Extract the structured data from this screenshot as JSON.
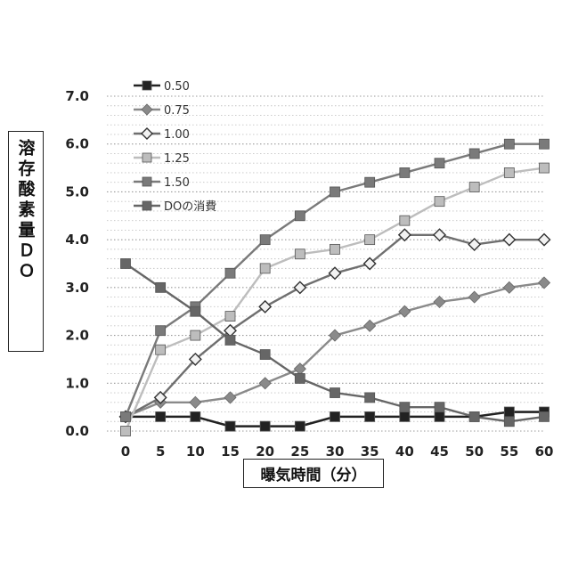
{
  "chart_data": {
    "type": "line",
    "xlabel": "曝気時間（分）",
    "ylabel": "溶存酸素量ＤＯ",
    "x": [
      0,
      5,
      10,
      15,
      20,
      25,
      30,
      35,
      40,
      45,
      50,
      55,
      60
    ],
    "ylim": [
      0,
      7
    ],
    "yticks": [
      "0.0",
      "1.0",
      "2.0",
      "3.0",
      "4.0",
      "5.0",
      "6.0",
      "7.0"
    ],
    "grid": "horizontal dotted",
    "legend_position": "top-left",
    "series": [
      {
        "name": "0.50",
        "marker": "square",
        "color": "#222222",
        "values": [
          0.3,
          0.3,
          0.3,
          0.1,
          0.1,
          0.1,
          0.3,
          0.3,
          0.3,
          0.3,
          0.3,
          0.4,
          0.4
        ]
      },
      {
        "name": "0.75",
        "marker": "diamond",
        "color": "#8a8a8a",
        "values": [
          0.3,
          0.6,
          0.6,
          0.7,
          1.0,
          1.3,
          2.0,
          2.2,
          2.5,
          2.7,
          2.8,
          3.0,
          3.1
        ]
      },
      {
        "name": "1.00",
        "marker": "diamond-open",
        "color": "#6f6f6f",
        "values": [
          0.3,
          0.7,
          1.5,
          2.1,
          2.6,
          3.0,
          3.3,
          3.5,
          4.1,
          4.1,
          3.9,
          4.0,
          4.0
        ]
      },
      {
        "name": "1.25",
        "marker": "square",
        "color": "#bdbdbd",
        "values": [
          0.0,
          1.7,
          2.0,
          2.4,
          3.4,
          3.7,
          3.8,
          4.0,
          4.4,
          4.8,
          5.1,
          5.4,
          5.5
        ]
      },
      {
        "name": "1.50",
        "marker": "square",
        "color": "#7a7a7a",
        "values": [
          0.3,
          2.1,
          2.6,
          3.3,
          4.0,
          4.5,
          5.0,
          5.2,
          5.4,
          5.6,
          5.8,
          6.0,
          6.0
        ]
      },
      {
        "name": "DOの消費",
        "marker": "square",
        "color": "#666666",
        "values": [
          3.5,
          3.0,
          2.5,
          1.9,
          1.6,
          1.1,
          0.8,
          0.7,
          0.5,
          0.5,
          0.3,
          0.2,
          0.3
        ]
      }
    ]
  }
}
